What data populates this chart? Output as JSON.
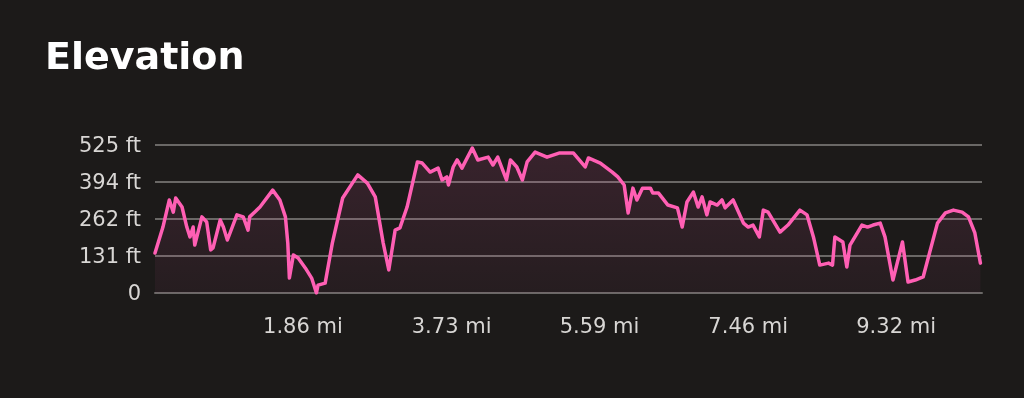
{
  "chart_data": {
    "type": "area",
    "title": "Elevation",
    "x": [
      0,
      0.1,
      0.18,
      0.23,
      0.26,
      0.34,
      0.4,
      0.44,
      0.48,
      0.5,
      0.59,
      0.65,
      0.7,
      0.73,
      0.82,
      0.86,
      0.91,
      1.03,
      1.11,
      1.17,
      1.19,
      1.32,
      1.48,
      1.57,
      1.64,
      1.67,
      1.69,
      1.74,
      1.8,
      1.89,
      1.97,
      2.03,
      2.05,
      2.14,
      2.23,
      2.36,
      2.55,
      2.67,
      2.77,
      2.87,
      2.94,
      3.02,
      3.08,
      3.17,
      3.3,
      3.36,
      3.46,
      3.56,
      3.61,
      3.67,
      3.69,
      3.75,
      3.8,
      3.86,
      3.9,
      3.99,
      4.06,
      4.19,
      4.25,
      4.31,
      4.42,
      4.47,
      4.55,
      4.62,
      4.68,
      4.78,
      4.93,
      5.09,
      5.26,
      5.41,
      5.45,
      5.6,
      5.75,
      5.82,
      5.9,
      5.95,
      6.01,
      6.06,
      6.13,
      6.23,
      6.26,
      6.33,
      6.45,
      6.57,
      6.63,
      6.69,
      6.77,
      6.83,
      6.88,
      6.94,
      6.98,
      7.07,
      7.13,
      7.17,
      7.27,
      7.4,
      7.46,
      7.52,
      7.6,
      7.65,
      7.71,
      7.86,
      7.96,
      8.11,
      8.2,
      8.28,
      8.36,
      8.47,
      8.52,
      8.55,
      8.65,
      8.7,
      8.74,
      8.89,
      8.96,
      9.03,
      9.12,
      9.18,
      9.28,
      9.4,
      9.47,
      9.56,
      9.66,
      9.84,
      9.94,
      10.04,
      10.15,
      10.23,
      10.31,
      10.38
    ],
    "series": [
      {
        "color": "#ff5fb4",
        "values": [
          142,
          234,
          330,
          287,
          337,
          305,
          234,
          199,
          234,
          170,
          270,
          252,
          153,
          160,
          259,
          234,
          188,
          277,
          270,
          223,
          270,
          305,
          365,
          330,
          270,
          177,
          53,
          135,
          124,
          89,
          53,
          0,
          28,
          35,
          177,
          337,
          419,
          390,
          341,
          177,
          82,
          223,
          231,
          305,
          465,
          461,
          429,
          443,
          401,
          412,
          383,
          447,
          472,
          443,
          465,
          514,
          472,
          482,
          454,
          482,
          401,
          472,
          447,
          401,
          465,
          500,
          482,
          497,
          497,
          447,
          479,
          461,
          429,
          412,
          383,
          284,
          372,
          330,
          372,
          372,
          355,
          355,
          312,
          302,
          234,
          323,
          358,
          305,
          341,
          277,
          323,
          312,
          330,
          302,
          330,
          248,
          234,
          241,
          199,
          294,
          287,
          216,
          241,
          294,
          277,
          199,
          99,
          106,
          99,
          199,
          181,
          92,
          170,
          241,
          234,
          241,
          248,
          199,
          46,
          181,
          39,
          46,
          57,
          248,
          284,
          294,
          287,
          270,
          213,
          106
        ]
      }
    ],
    "xlim": [
      0,
      10.4
    ],
    "xticks": [
      {
        "value": 1.86,
        "label": "1.86 mi"
      },
      {
        "value": 3.73,
        "label": "3.73 mi"
      },
      {
        "value": 5.59,
        "label": "5.59 mi"
      },
      {
        "value": 7.46,
        "label": "7.46 mi"
      },
      {
        "value": 9.32,
        "label": "9.32 mi"
      }
    ],
    "ylim": [
      0,
      525
    ],
    "yticks": [
      0,
      {
        "value": 131,
        "label": "131 ft"
      },
      {
        "value": 262,
        "label": "262 ft"
      },
      {
        "value": 394,
        "label": "394 ft"
      },
      {
        "value": 525,
        "label": "525 ft"
      }
    ],
    "grid": "y",
    "marker": "none",
    "line_style": "solid"
  }
}
